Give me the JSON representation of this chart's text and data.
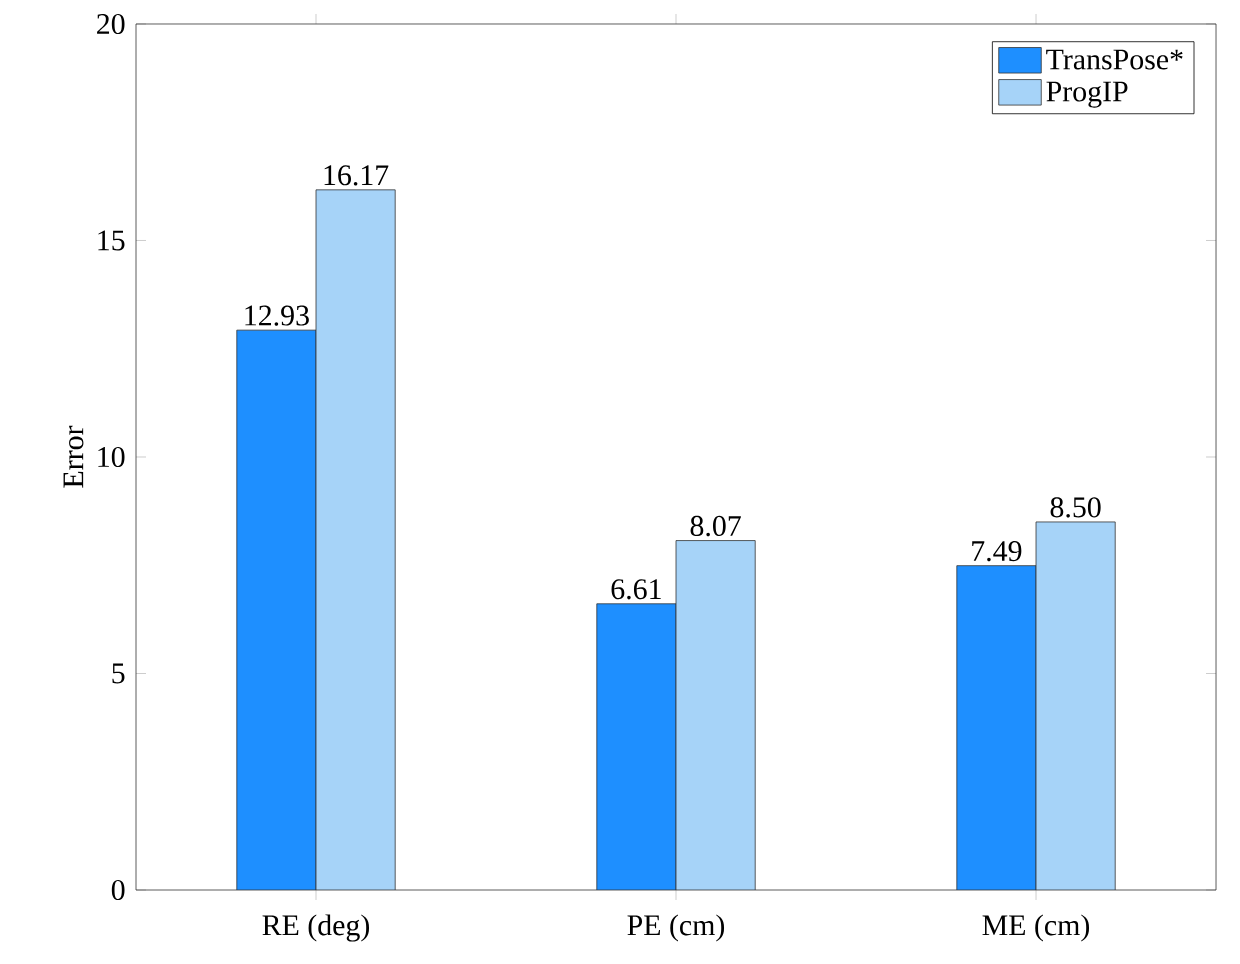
{
  "chart_data": {
    "type": "bar",
    "ylabel": "Error",
    "categories": [
      "RE (deg)",
      "PE (cm)",
      "ME (cm)"
    ],
    "series": [
      {
        "name": "TransPose*",
        "color": "#1e8fff",
        "values": [
          12.93,
          6.61,
          7.49
        ],
        "value_labels": [
          "12.93",
          "6.61",
          "7.49"
        ]
      },
      {
        "name": "ProgIP",
        "color": "#a6d3f8",
        "values": [
          16.17,
          8.07,
          8.5
        ],
        "value_labels": [
          "16.17",
          "8.07",
          "8.50"
        ]
      }
    ],
    "ylim": [
      0,
      20
    ],
    "yticks": [
      0,
      5,
      10,
      15,
      20
    ],
    "legend": "top right",
    "grid": false
  }
}
